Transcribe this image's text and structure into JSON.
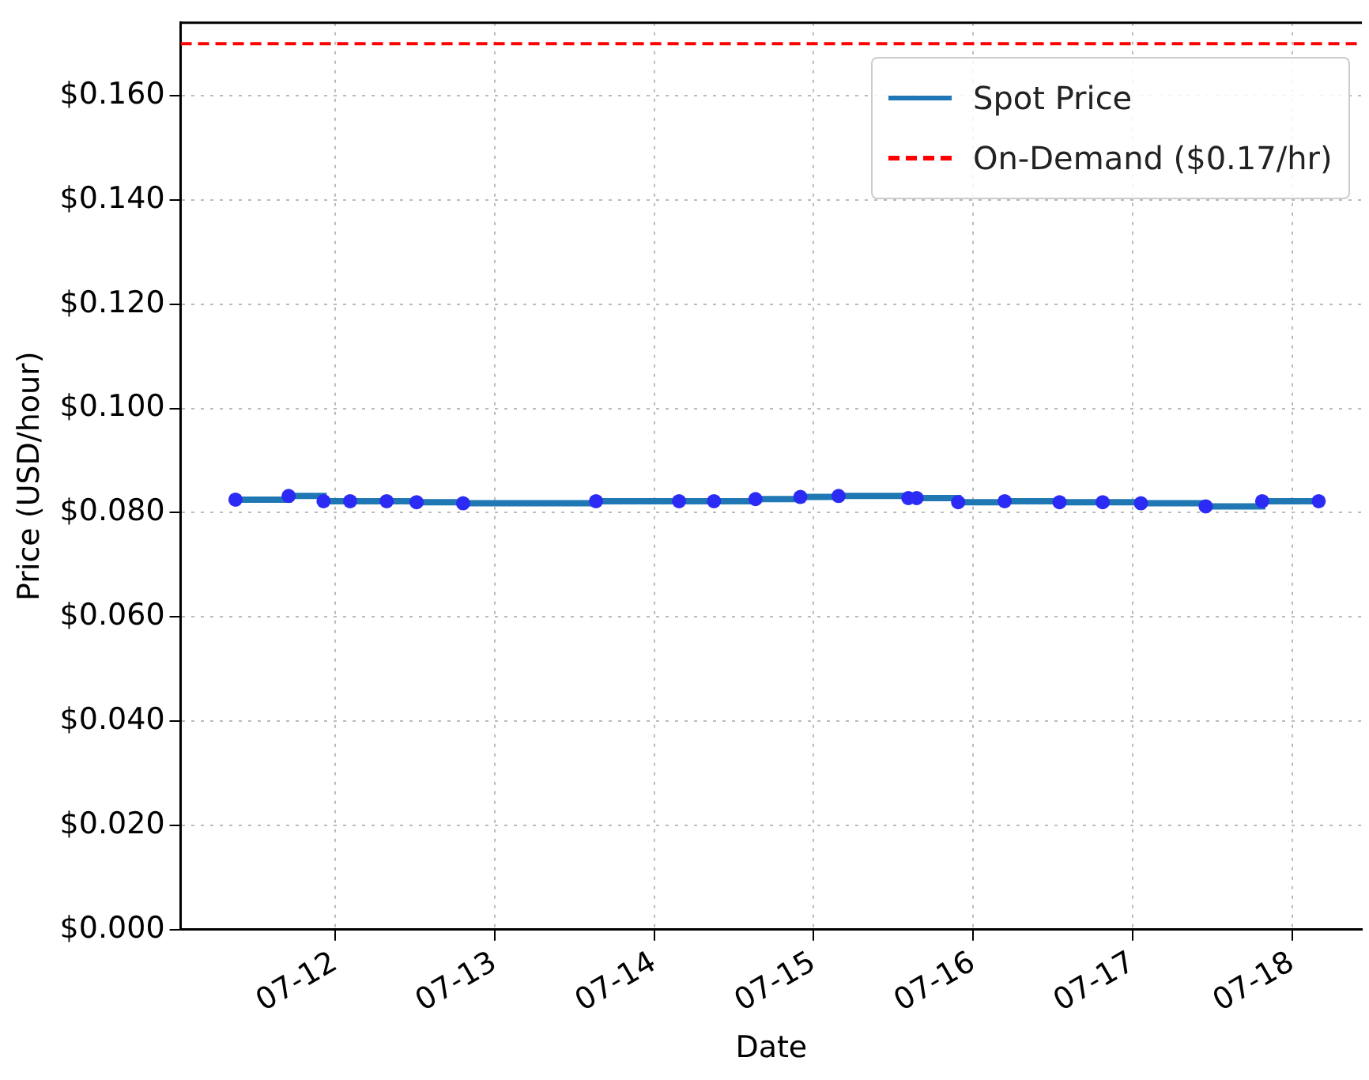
{
  "chart_data": {
    "type": "step",
    "xlabel": "Date",
    "ylabel": "Price (USD/hour)",
    "x": [
      "--07-11T09:00",
      "--07-11T17:00",
      "--07-11T22:15",
      "--07-12T02:15",
      "--07-12T07:45",
      "--07-12T12:15",
      "--07-12T19:15",
      "--07-13T15:15",
      "--07-14T03:45",
      "--07-14T09:00",
      "--07-14T15:15",
      "--07-14T22:00",
      "--07-15T03:45",
      "--07-15T14:15",
      "--07-15T15:30",
      "--07-15T21:45",
      "--07-16T04:45",
      "--07-16T13:00",
      "--07-16T19:30",
      "--07-17T01:15",
      "--07-17T11:00",
      "--07-17T19:30",
      "--07-18T04:00"
    ],
    "series": [
      {
        "name": "Spot Price",
        "type": "step",
        "color": "#1f77b4",
        "marker": "none",
        "values": [
          0.0825,
          0.0832,
          0.0822,
          0.0822,
          0.0822,
          0.082,
          0.0818,
          0.0822,
          0.0822,
          0.0822,
          0.0826,
          0.083,
          0.0832,
          0.0828,
          0.0828,
          0.082,
          0.0822,
          0.082,
          0.082,
          0.0818,
          0.0812,
          0.0822,
          0.0822
        ]
      },
      {
        "type": "scatter",
        "color": "#2b2bf5",
        "marker": "circle",
        "values": [
          0.0825,
          0.0832,
          0.0822,
          0.0822,
          0.0822,
          0.082,
          0.0818,
          0.0822,
          0.0822,
          0.0822,
          0.0826,
          0.083,
          0.0832,
          0.0828,
          0.0828,
          0.082,
          0.0822,
          0.082,
          0.082,
          0.0818,
          0.0812,
          0.0822,
          0.0822
        ]
      }
    ],
    "ref_lines": [
      {
        "axis": "y",
        "value": 0.17,
        "label": "On-Demand ($0.17/hr)",
        "color": "#ff0000",
        "line_style": "dashed"
      }
    ],
    "xlim": [
      "--07-11T00:45",
      "--07-18T10:30"
    ],
    "xticks": [
      {
        "value": "--07-12",
        "label": "07-12"
      },
      {
        "value": "--07-13",
        "label": "07-13"
      },
      {
        "value": "--07-14",
        "label": "07-14"
      },
      {
        "value": "--07-15",
        "label": "07-15"
      },
      {
        "value": "--07-16",
        "label": "07-16"
      },
      {
        "value": "--07-17",
        "label": "07-17"
      },
      {
        "value": "--07-18",
        "label": "07-18"
      }
    ],
    "ylim": [
      0,
      0.174
    ],
    "yticks": [
      {
        "value": 0,
        "label": "$0.000"
      },
      {
        "value": 0.02,
        "label": "$0.020"
      },
      {
        "value": 0.04,
        "label": "$0.040"
      },
      {
        "value": 0.06,
        "label": "$0.060"
      },
      {
        "value": 0.08,
        "label": "$0.080"
      },
      {
        "value": 0.1,
        "label": "$0.100"
      },
      {
        "value": 0.12,
        "label": "$0.120"
      },
      {
        "value": 0.14,
        "label": "$0.140"
      },
      {
        "value": 0.16,
        "label": "$0.160"
      }
    ],
    "grid": true,
    "legend": "top right"
  }
}
